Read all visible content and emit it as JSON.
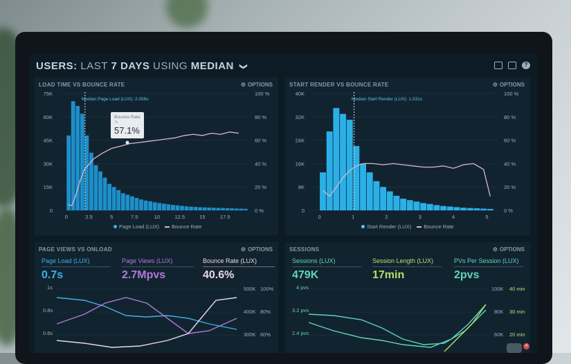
{
  "header": {
    "prefix": "USERS:",
    "range_word": "LAST",
    "range_num": "7 DAYS",
    "using": "USING",
    "method": "MEDIAN",
    "chevron": "❯"
  },
  "icons": [
    "monitor-icon",
    "image-icon",
    "help-icon"
  ],
  "options_label": "OPTIONS",
  "panels": {
    "load": {
      "title": "LOAD TIME VS BOUNCE RATE",
      "median_label": "Median Page Load (LUX): 2.056s",
      "tooltip": {
        "label": "Bounce Rate",
        "sub": "7s",
        "value": "57.1%"
      },
      "legend_bar": "Page Load (LUX)",
      "legend_line": "Bounce Rate"
    },
    "render": {
      "title": "START RENDER VS BOUNCE RATE",
      "median_label": "Median Start Render (LUX): 1.031s",
      "legend_bar": "Start Render (LUX)",
      "legend_line": "Bounce Rate"
    },
    "pageviews": {
      "title": "PAGE VIEWS VS ONLOAD",
      "metrics": [
        {
          "label": "Page Load (LUX)",
          "value": "0.7s",
          "color": "#3db2e6"
        },
        {
          "label": "Page Views (LUX)",
          "value": "2.7Mpvs",
          "color": "#b07ad6"
        },
        {
          "label": "Bounce Rate (LUX)",
          "value": "40.6%",
          "color": "#e8d8e8"
        }
      ],
      "y_left": [
        "1s",
        "0.8s",
        "0.6s"
      ],
      "y_mid": [
        "500K",
        "400K",
        "300K"
      ],
      "y_right": [
        "100%",
        "80%",
        "60%"
      ]
    },
    "sessions": {
      "title": "SESSIONS",
      "metrics": [
        {
          "label": "Sessions (LUX)",
          "value": "479K",
          "color": "#5fd6b8"
        },
        {
          "label": "Session Length (LUX)",
          "value": "17min",
          "color": "#b6e06a"
        },
        {
          "label": "PVs Per Session (LUX)",
          "value": "2pvs",
          "color": "#5fd6b8"
        }
      ],
      "y_left": [
        "4 pvs",
        "3.2 pvs",
        "2.4 pvs"
      ],
      "y_mid": [
        "100K",
        "80K",
        "60K"
      ],
      "y_right": [
        "40 min",
        "30 min",
        "20 min"
      ]
    }
  },
  "badge_count": "4",
  "colors": {
    "bar": "#1e8fcb",
    "bar2": "#2ab0e6",
    "line": "#d9b8cf"
  },
  "chart_data": [
    {
      "type": "bar",
      "title": "LOAD TIME VS BOUNCE RATE",
      "x_ticks": [
        0,
        2.5,
        5,
        7.5,
        10,
        12.5,
        15,
        17.5
      ],
      "y_left_ticks": [
        "0",
        "15K",
        "30K",
        "45K",
        "60K",
        "75K"
      ],
      "y_right_ticks": [
        "0 %",
        "20 %",
        "40 %",
        "60 %",
        "80 %",
        "100 %"
      ],
      "xlim": [
        -0.6,
        20
      ],
      "ylim": [
        0,
        75000
      ],
      "bin_width": 0.5,
      "series": [
        {
          "name": "Page Load (LUX)",
          "kind": "bar",
          "values": [
            48000,
            70000,
            67000,
            62000,
            48000,
            37000,
            29000,
            25000,
            21000,
            17000,
            15000,
            13000,
            11000,
            10000,
            9000,
            8000,
            7000,
            6300,
            5800,
            5200,
            4700,
            4300,
            3900,
            3500,
            3200,
            2900,
            2600,
            2400,
            2200,
            2000,
            1900,
            1800,
            1700,
            1600,
            1500,
            1400,
            1300,
            1200,
            1100,
            1000
          ]
        },
        {
          "name": "Bounce Rate",
          "kind": "line",
          "axis": "right",
          "x": [
            0.2,
            0.6,
            1.0,
            1.5,
            2.0,
            3.0,
            4.0,
            5.0,
            6.0,
            7.0,
            8.0,
            9.0,
            10.0,
            11.0,
            12.0,
            13.0,
            14.0,
            15.0,
            16.0,
            17.0,
            18.0,
            19.0
          ],
          "values": [
            5,
            4,
            12,
            25,
            35,
            44,
            49,
            53,
            55,
            57.1,
            58,
            59,
            60,
            61,
            62,
            64,
            65,
            64,
            66,
            65,
            67,
            66
          ]
        }
      ]
    },
    {
      "type": "bar",
      "title": "START RENDER VS BOUNCE RATE",
      "x_ticks": [
        0,
        1,
        2,
        3,
        4,
        5
      ],
      "y_left_ticks": [
        "0",
        "8K",
        "16K",
        "24K",
        "32K",
        "40K"
      ],
      "y_right_ticks": [
        "0 %",
        "20 %",
        "40 %",
        "60 %",
        "80 %",
        "100 %"
      ],
      "xlim": [
        -0.2,
        5.3
      ],
      "ylim": [
        0,
        40000
      ],
      "bin_width": 0.2,
      "series": [
        {
          "name": "Start Render (LUX)",
          "kind": "bar",
          "values": [
            13000,
            27000,
            35000,
            33000,
            31000,
            22000,
            16000,
            13000,
            10000,
            8000,
            6500,
            5000,
            4000,
            3500,
            3000,
            2500,
            2200,
            1800,
            1500,
            1300,
            1100,
            900,
            800,
            700,
            600,
            500
          ]
        },
        {
          "name": "Bounce Rate",
          "kind": "line",
          "axis": "right",
          "x": [
            0.1,
            0.3,
            0.5,
            0.7,
            0.9,
            1.1,
            1.3,
            1.6,
            1.9,
            2.2,
            2.5,
            2.8,
            3.1,
            3.4,
            3.7,
            4.0,
            4.3,
            4.6,
            4.9,
            5.1
          ],
          "values": [
            17,
            12,
            20,
            28,
            34,
            38,
            40,
            40,
            39,
            40,
            39,
            38,
            37,
            37,
            38,
            36,
            39,
            40,
            35,
            12
          ]
        }
      ]
    }
  ]
}
